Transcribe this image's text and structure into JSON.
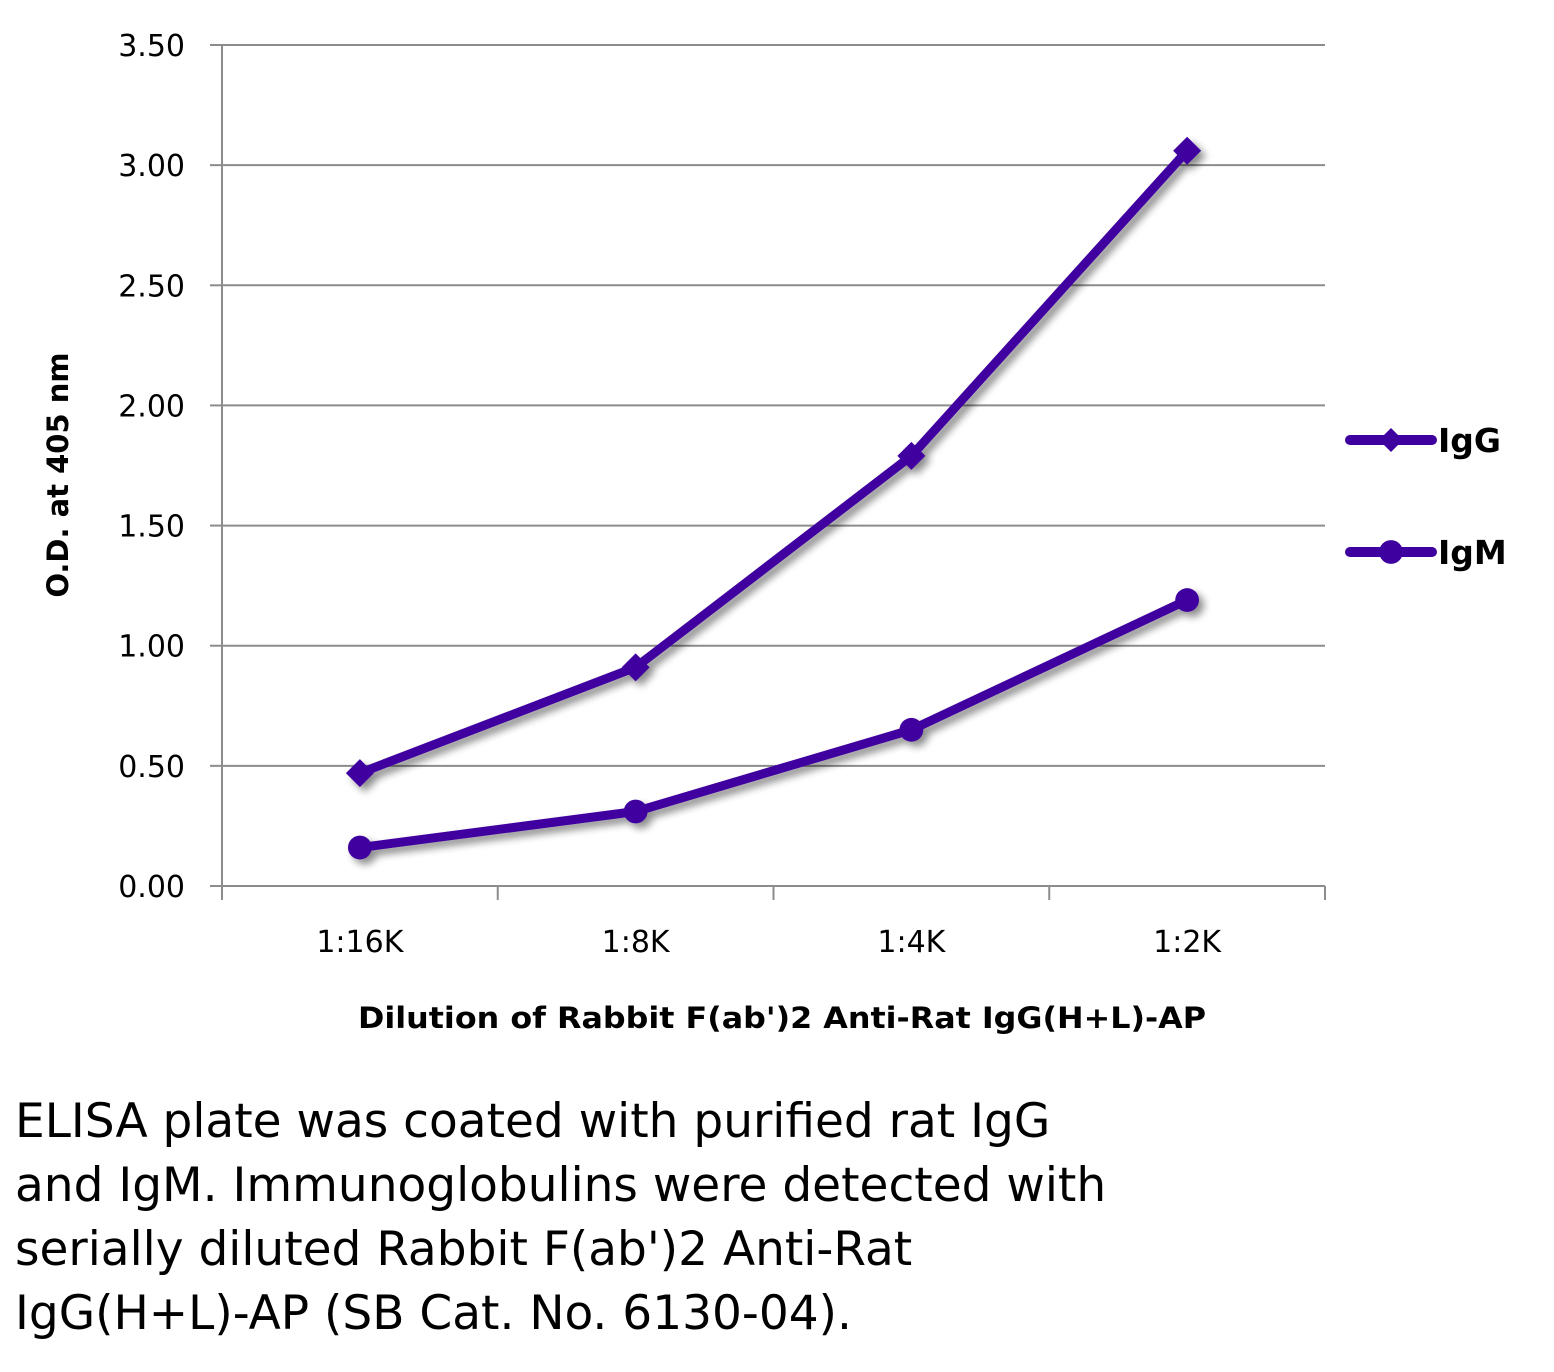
{
  "chart_data": {
    "type": "line",
    "title": "",
    "xlabel": "Dilution of Rabbit F(ab')2 Anti-Rat IgG(H+L)-AP",
    "ylabel": "O.D. at 405 nm",
    "categories": [
      "1:16K",
      "1:8K",
      "1:4K",
      "1:2K"
    ],
    "ylim": [
      0,
      3.5
    ],
    "yticks": [
      "0.00",
      "0.50",
      "1.00",
      "1.50",
      "2.00",
      "2.50",
      "3.00",
      "3.50"
    ],
    "grid": true,
    "legend_position": "right",
    "series": [
      {
        "name": "IgG",
        "marker": "diamond",
        "color": "#3f00a0",
        "values": [
          0.47,
          0.91,
          1.79,
          3.06
        ]
      },
      {
        "name": "IgM",
        "marker": "circle",
        "color": "#3f00a0",
        "values": [
          0.16,
          0.31,
          0.65,
          1.19
        ]
      }
    ]
  },
  "caption": [
    "ELISA plate was coated with purified rat IgG",
    "and IgM.  Immunoglobulins were detected with",
    "serially diluted Rabbit F(ab')2 Anti-Rat",
    "IgG(H+L)-AP (SB Cat. No. 6130-04)."
  ]
}
